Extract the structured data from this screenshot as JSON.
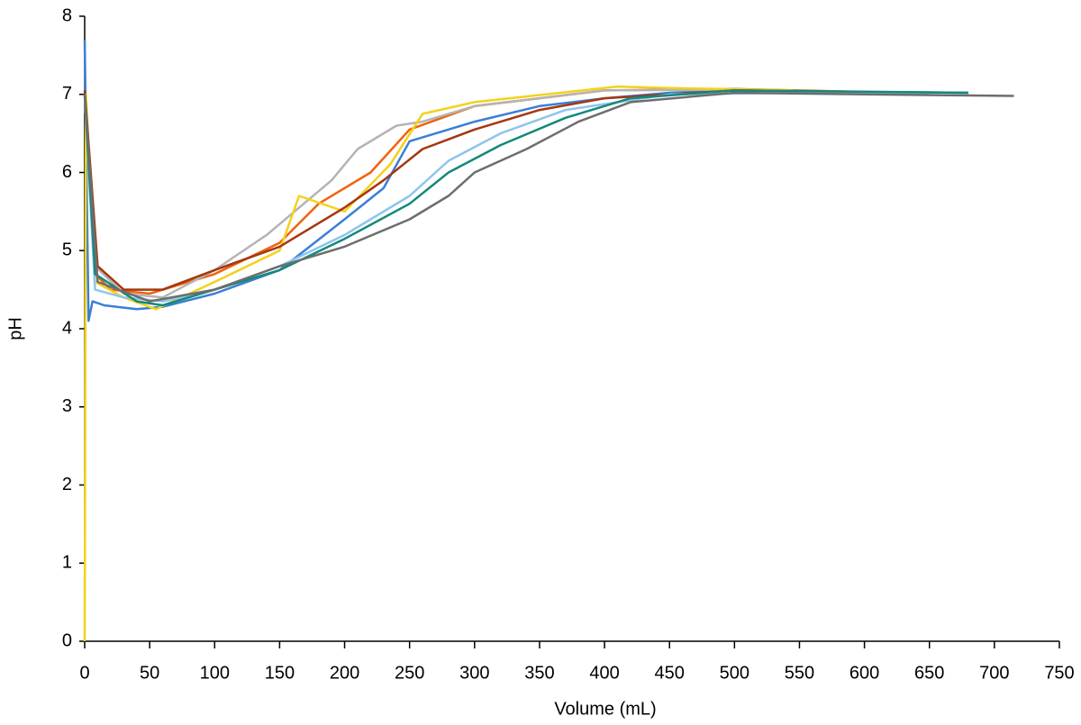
{
  "chart_data": {
    "type": "line",
    "x_label": "Volume (mL)",
    "y_label": "pH",
    "xlim": [
      0,
      750
    ],
    "xticks": [
      0,
      50,
      100,
      150,
      200,
      250,
      300,
      350,
      400,
      450,
      500,
      550,
      600,
      650,
      700,
      750
    ],
    "ylim": [
      0,
      8
    ],
    "yticks": [
      0,
      1,
      2,
      3,
      4,
      5,
      6,
      7,
      8
    ],
    "grid": false,
    "series": [
      {
        "color": "#3a7fd5",
        "x": [
          0,
          3,
          6,
          15,
          40,
          60,
          100,
          150,
          200,
          230,
          250,
          280,
          300,
          350,
          400,
          450,
          500,
          600,
          680
        ],
        "values": [
          7.7,
          4.1,
          4.35,
          4.3,
          4.25,
          4.28,
          4.45,
          4.75,
          5.4,
          5.8,
          6.4,
          6.55,
          6.65,
          6.85,
          6.95,
          7.02,
          7.05,
          7.03,
          7.02
        ]
      },
      {
        "color": "#f0620e",
        "x": [
          0,
          8,
          20,
          50,
          100,
          150,
          180,
          220,
          250,
          300,
          350,
          400,
          500,
          600
        ],
        "values": [
          7,
          4.7,
          4.5,
          4.45,
          4.7,
          5.1,
          5.6,
          6.0,
          6.55,
          6.85,
          6.95,
          7.05,
          7.07,
          7.03
        ]
      },
      {
        "color": "#b4b4b4",
        "x": [
          0,
          8,
          30,
          60,
          100,
          140,
          190,
          210,
          240,
          260,
          300,
          400,
          500,
          620
        ],
        "values": [
          7,
          4.8,
          4.45,
          4.4,
          4.75,
          5.2,
          5.9,
          6.3,
          6.6,
          6.65,
          6.85,
          7.05,
          7.06,
          7.02
        ]
      },
      {
        "color": "#f2d21b",
        "x": [
          0,
          1,
          8,
          30,
          55,
          100,
          150,
          165,
          200,
          235,
          260,
          300,
          410,
          450,
          545
        ],
        "values": [
          0,
          7,
          4.6,
          4.4,
          4.25,
          4.6,
          5.0,
          5.7,
          5.5,
          6.1,
          6.75,
          6.9,
          7.1,
          7.08,
          7.05
        ]
      },
      {
        "color": "#a5370f",
        "x": [
          0,
          10,
          30,
          60,
          100,
          150,
          200,
          230,
          260,
          300,
          350,
          400,
          500,
          600
        ],
        "values": [
          7.05,
          4.8,
          4.5,
          4.5,
          4.75,
          5.05,
          5.55,
          5.9,
          6.3,
          6.55,
          6.8,
          6.95,
          7.05,
          7.03
        ]
      },
      {
        "color": "#8ec4ef",
        "x": [
          0,
          8,
          30,
          60,
          100,
          150,
          200,
          250,
          280,
          320,
          370,
          450,
          550,
          650
        ],
        "values": [
          7,
          4.5,
          4.4,
          4.35,
          4.5,
          4.8,
          5.2,
          5.7,
          6.15,
          6.5,
          6.8,
          7.0,
          7.02,
          7.0
        ]
      },
      {
        "color": "#13897a",
        "x": [
          0,
          8,
          40,
          60,
          100,
          150,
          200,
          250,
          280,
          320,
          370,
          420,
          500,
          680
        ],
        "values": [
          7,
          4.7,
          4.35,
          4.3,
          4.5,
          4.75,
          5.15,
          5.6,
          6.0,
          6.35,
          6.7,
          6.95,
          7.05,
          7.02
        ]
      },
      {
        "color": "#6d6d6d",
        "x": [
          0,
          10,
          50,
          100,
          150,
          200,
          250,
          280,
          300,
          340,
          380,
          420,
          500,
          600,
          715
        ],
        "values": [
          7,
          4.6,
          4.35,
          4.5,
          4.8,
          5.05,
          5.4,
          5.7,
          6.0,
          6.3,
          6.65,
          6.9,
          7.02,
          7.0,
          6.98
        ]
      }
    ]
  }
}
